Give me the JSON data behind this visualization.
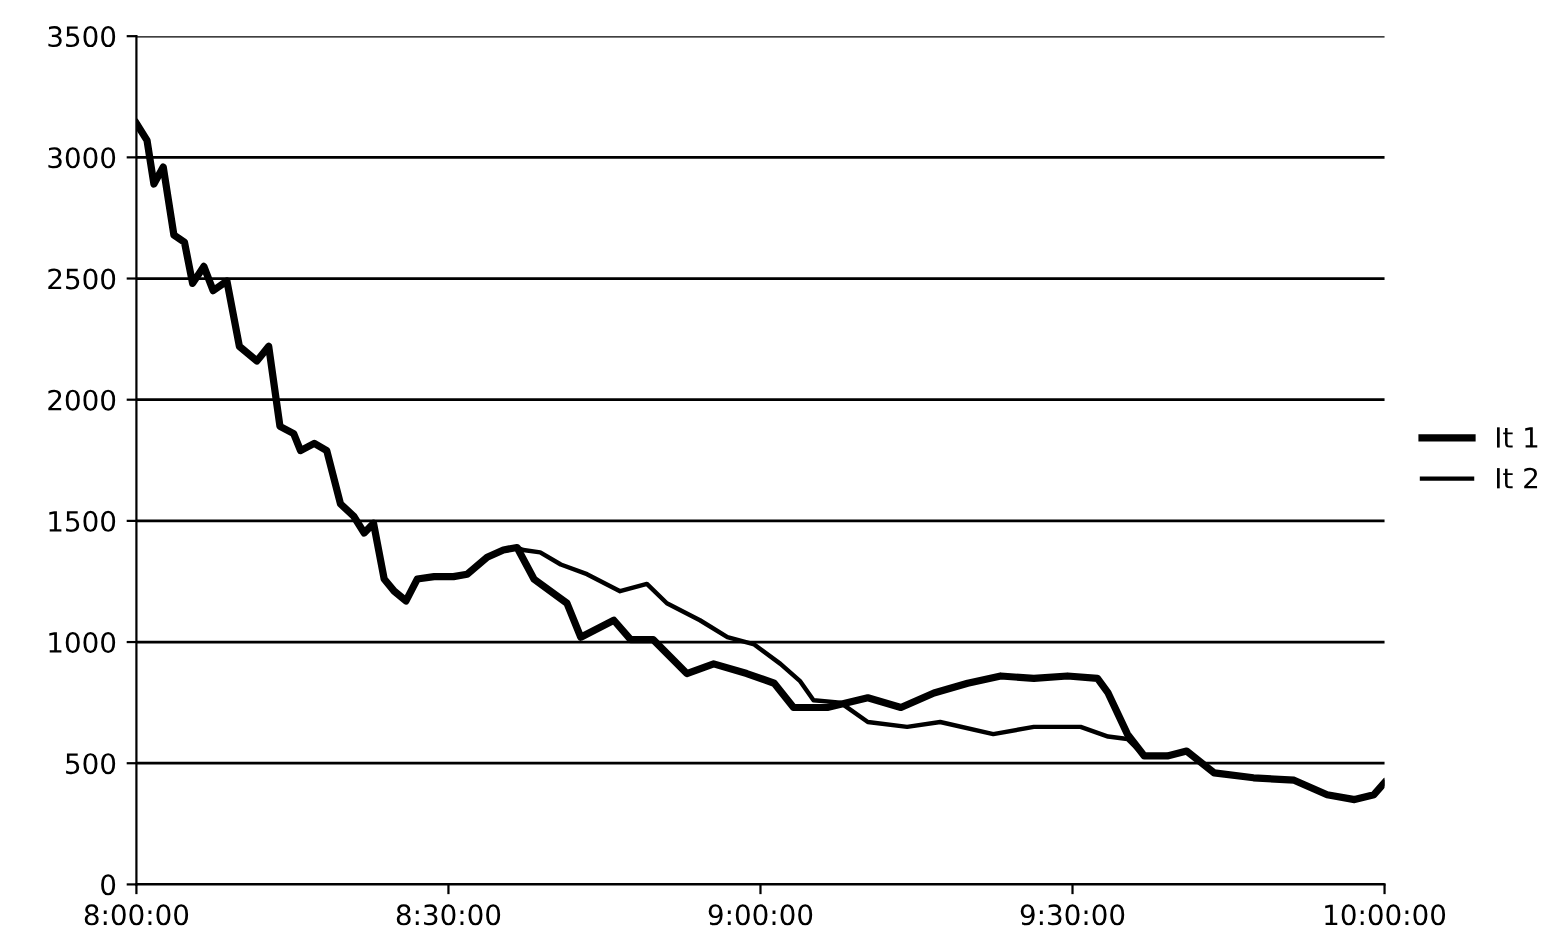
{
  "chart_data": {
    "type": "line",
    "xlim": [
      8.0,
      10.0
    ],
    "ylim": [
      0,
      3500
    ],
    "xticks": [
      {
        "value": 8.0,
        "label": "8:00:00"
      },
      {
        "value": 8.5,
        "label": "8:30:00"
      },
      {
        "value": 9.0,
        "label": "9:00:00"
      },
      {
        "value": 9.5,
        "label": "9:30:00"
      },
      {
        "value": 10.0,
        "label": "10:00:00"
      }
    ],
    "yticks": [
      0,
      500,
      1000,
      1500,
      2000,
      2500,
      3000,
      3500
    ],
    "grid": "y",
    "legend": "right",
    "line_style": "solid",
    "marker": "none",
    "series": [
      {
        "name": "It 1",
        "color": "#000000",
        "x": [
          8.0,
          8.017,
          8.028,
          8.043,
          8.06,
          8.077,
          8.09,
          8.108,
          8.123,
          8.145,
          8.165,
          8.193,
          8.212,
          8.23,
          8.252,
          8.263,
          8.285,
          8.305,
          8.327,
          8.348,
          8.365,
          8.38,
          8.397,
          8.413,
          8.432,
          8.45,
          8.477,
          8.508,
          8.53,
          8.562,
          8.588,
          8.61,
          8.637,
          8.69,
          8.712,
          8.765,
          8.792,
          8.828,
          8.882,
          8.925,
          8.978,
          9.022,
          9.053,
          9.107,
          9.172,
          9.225,
          9.278,
          9.332,
          9.385,
          9.438,
          9.492,
          9.54,
          9.557,
          9.588,
          9.615,
          9.652,
          9.683,
          9.727,
          9.79,
          9.855,
          9.908,
          9.952,
          9.983,
          10.0
        ],
        "values": [
          3140,
          3070,
          2890,
          2960,
          2680,
          2650,
          2480,
          2550,
          2450,
          2490,
          2220,
          2160,
          2220,
          1890,
          1860,
          1790,
          1820,
          1790,
          1570,
          1520,
          1450,
          1490,
          1260,
          1210,
          1170,
          1260,
          1270,
          1270,
          1280,
          1350,
          1380,
          1390,
          1260,
          1160,
          1020,
          1090,
          1010,
          1010,
          870,
          910,
          870,
          830,
          730,
          730,
          770,
          730,
          790,
          830,
          860,
          850,
          860,
          850,
          790,
          620,
          530,
          530,
          550,
          460,
          440,
          430,
          370,
          350,
          370,
          420
        ]
      },
      {
        "name": "It 2",
        "color": "#000000",
        "x": [
          8.0,
          8.017,
          8.028,
          8.043,
          8.06,
          8.077,
          8.09,
          8.108,
          8.123,
          8.145,
          8.165,
          8.193,
          8.212,
          8.23,
          8.252,
          8.263,
          8.285,
          8.305,
          8.327,
          8.348,
          8.365,
          8.38,
          8.397,
          8.413,
          8.432,
          8.45,
          8.477,
          8.508,
          8.53,
          8.562,
          8.588,
          8.61,
          8.62,
          8.647,
          8.68,
          8.722,
          8.775,
          8.818,
          8.85,
          8.903,
          8.947,
          8.99,
          9.032,
          9.063,
          9.085,
          9.128,
          9.172,
          9.235,
          9.288,
          9.373,
          9.438,
          9.513,
          9.557,
          9.588,
          9.615,
          9.652,
          9.683,
          9.727,
          9.79,
          9.855,
          9.908,
          9.952,
          9.983,
          10.0
        ],
        "values": [
          3140,
          3070,
          2890,
          2960,
          2680,
          2650,
          2480,
          2550,
          2450,
          2490,
          2220,
          2160,
          2220,
          1890,
          1860,
          1790,
          1820,
          1790,
          1570,
          1520,
          1450,
          1490,
          1260,
          1210,
          1170,
          1260,
          1270,
          1270,
          1280,
          1350,
          1380,
          1390,
          1380,
          1370,
          1320,
          1280,
          1210,
          1240,
          1160,
          1090,
          1020,
          990,
          910,
          840,
          760,
          750,
          670,
          650,
          670,
          620,
          650,
          650,
          610,
          600,
          530,
          530,
          550,
          460,
          440,
          430,
          370,
          350,
          370,
          420
        ]
      }
    ]
  }
}
